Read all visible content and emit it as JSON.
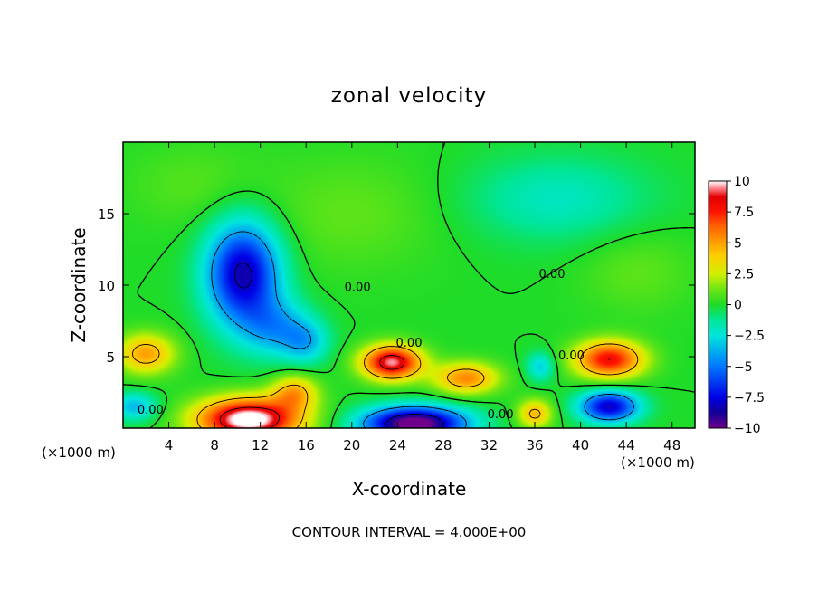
{
  "chart_data": {
    "type": "heatmap",
    "title": "zonal velocity",
    "xlabel": "X-coordinate",
    "ylabel": "Z-coordinate",
    "x_unit_left": "(×1000 m)",
    "x_unit_right": "(×1000 m)",
    "footer": "CONTOUR INTERVAL = 4.000E+00",
    "xlim": [
      0,
      50
    ],
    "ylim": [
      0,
      20
    ],
    "x_ticks": [
      "4",
      "8",
      "12",
      "16",
      "20",
      "24",
      "28",
      "32",
      "36",
      "40",
      "44",
      "48"
    ],
    "x_tick_values": [
      4,
      8,
      12,
      16,
      20,
      24,
      28,
      32,
      36,
      40,
      44,
      48
    ],
    "y_ticks": [
      "5",
      "10",
      "15"
    ],
    "y_tick_values": [
      5,
      10,
      15
    ],
    "contour_labels": [
      {
        "text": "0.00",
        "x": 2.4,
        "z": 1.0
      },
      {
        "text": "0.00",
        "x": 20.5,
        "z": 9.6
      },
      {
        "text": "0.00",
        "x": 25.0,
        "z": 5.7
      },
      {
        "text": "0.00",
        "x": 33.0,
        "z": 0.7
      },
      {
        "text": "0.00",
        "x": 37.5,
        "z": 10.5
      },
      {
        "text": "0.00",
        "x": 39.2,
        "z": 4.8
      }
    ],
    "colorbar": {
      "ticks": [
        "10",
        "7.5",
        "5",
        "2.5",
        "0",
        "−2.5",
        "−5",
        "−7.5",
        "−10"
      ],
      "values": [
        10,
        7.5,
        5,
        2.5,
        0,
        -2.5,
        -5,
        -7.5,
        -10
      ],
      "range": [
        -10,
        10
      ]
    },
    "features": [
      {
        "x": 10.5,
        "z": 10.8,
        "sx": 3.2,
        "sz": 3.6,
        "amp": -8.5
      },
      {
        "x": 13.5,
        "z": 7.0,
        "sx": 3.0,
        "sz": 2.0,
        "amp": -3.5
      },
      {
        "x": 16.0,
        "z": 6.0,
        "sx": 2.0,
        "sz": 1.5,
        "amp": -3.0
      },
      {
        "x": 23.5,
        "z": 4.6,
        "sx": 2.6,
        "sz": 1.2,
        "amp": 9.5
      },
      {
        "x": 30.0,
        "z": 3.5,
        "sx": 2.8,
        "sz": 1.1,
        "amp": 5.5
      },
      {
        "x": 11.0,
        "z": 0.6,
        "sx": 4.5,
        "sz": 1.5,
        "amp": 11.0
      },
      {
        "x": 15.0,
        "z": 2.5,
        "sx": 2.0,
        "sz": 1.2,
        "amp": 4.5
      },
      {
        "x": 2.0,
        "z": 5.2,
        "sx": 2.5,
        "sz": 1.4,
        "amp": 5.0
      },
      {
        "x": 25.5,
        "z": 0.3,
        "sx": 4.5,
        "sz": 1.2,
        "amp": -11.0
      },
      {
        "x": 42.5,
        "z": 4.8,
        "sx": 3.0,
        "sz": 1.3,
        "amp": 8.0
      },
      {
        "x": 42.5,
        "z": 1.5,
        "sx": 2.6,
        "sz": 1.1,
        "amp": -8.0
      },
      {
        "x": 36.5,
        "z": 4.3,
        "sx": 1.2,
        "sz": 1.0,
        "amp": -3.0
      },
      {
        "x": 20.0,
        "z": 15.0,
        "sx": 8.0,
        "sz": 4.0,
        "amp": 1.0
      },
      {
        "x": 38.0,
        "z": 16.0,
        "sx": 8.0,
        "sz": 3.0,
        "amp": -2.0
      },
      {
        "x": 6.0,
        "z": 17.0,
        "sx": 6.0,
        "sz": 3.0,
        "amp": 0.8
      },
      {
        "x": 45.0,
        "z": 11.0,
        "sx": 5.0,
        "sz": 3.0,
        "amp": 1.0
      },
      {
        "x": 1.0,
        "z": 1.5,
        "sx": 2.0,
        "sz": 1.0,
        "amp": -3.5
      },
      {
        "x": 36.0,
        "z": 1.0,
        "sx": 1.5,
        "sz": 1.0,
        "amp": 4.5
      }
    ]
  }
}
